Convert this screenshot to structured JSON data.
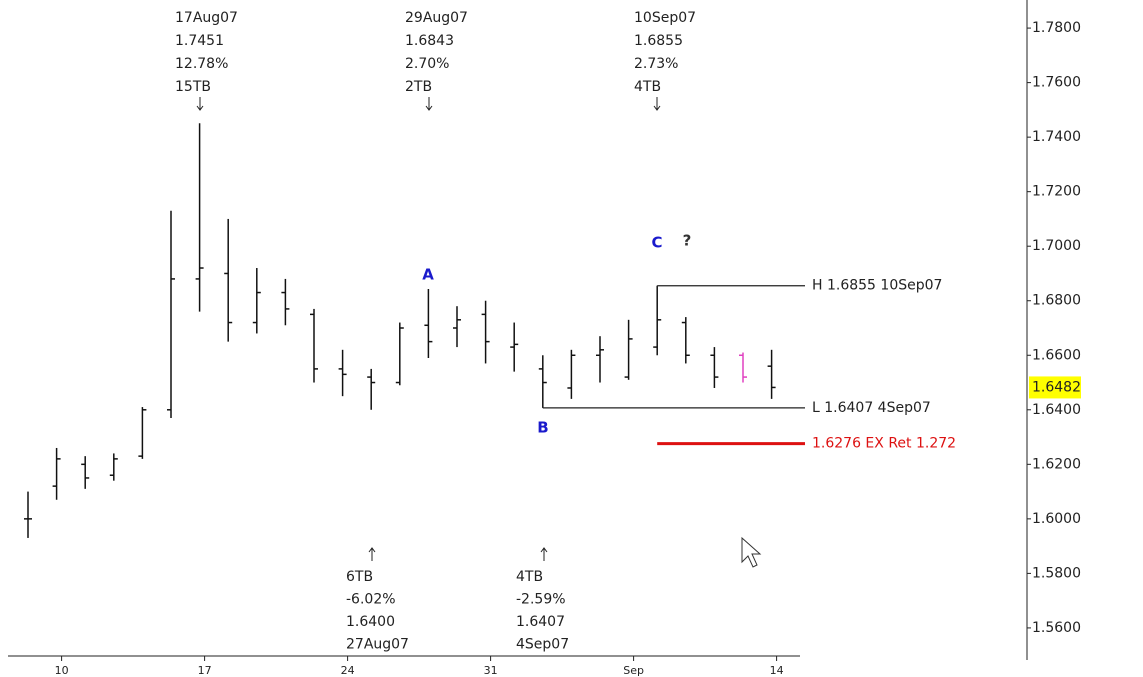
{
  "chart_data": {
    "type": "ohlc",
    "categories": [
      null,
      "10",
      null,
      null,
      null,
      null,
      "17",
      null,
      null,
      null,
      null,
      "24",
      null,
      null,
      null,
      null,
      "31",
      null,
      null,
      null,
      null,
      "Sep",
      null,
      null,
      null,
      null,
      "14"
    ],
    "series": [
      {
        "color": "#111111",
        "open": [
          1.6,
          1.612,
          1.62,
          1.616,
          1.623,
          1.64,
          1.688,
          1.69,
          1.672,
          1.683,
          1.675,
          1.655,
          1.652,
          1.65,
          1.671,
          1.67,
          1.675,
          1.663,
          1.655,
          1.648,
          1.66,
          1.652,
          1.663,
          1.672,
          1.66,
          1.66,
          1.656
        ],
        "high": [
          1.61,
          1.626,
          1.623,
          1.624,
          1.641,
          1.713,
          1.7451,
          1.71,
          1.692,
          1.688,
          1.677,
          1.662,
          1.655,
          1.672,
          1.6843,
          1.678,
          1.68,
          1.672,
          1.66,
          1.662,
          1.667,
          1.673,
          1.6855,
          1.674,
          1.663,
          1.661,
          1.662
        ],
        "low": [
          1.593,
          1.607,
          1.611,
          1.614,
          1.622,
          1.637,
          1.676,
          1.665,
          1.668,
          1.671,
          1.65,
          1.645,
          1.64,
          1.649,
          1.659,
          1.663,
          1.657,
          1.654,
          1.6407,
          1.644,
          1.65,
          1.651,
          1.66,
          1.657,
          1.648,
          1.65,
          1.644
        ],
        "close": [
          1.6,
          1.622,
          1.615,
          1.622,
          1.64,
          1.688,
          1.692,
          1.672,
          1.683,
          1.677,
          1.655,
          1.653,
          1.65,
          1.67,
          1.665,
          1.673,
          1.665,
          1.664,
          1.65,
          1.66,
          1.662,
          1.666,
          1.673,
          1.66,
          1.652,
          1.652,
          1.6482
        ]
      }
    ],
    "bar_colors": [
      "#111111",
      "#111111",
      "#111111",
      "#111111",
      "#111111",
      "#111111",
      "#111111",
      "#111111",
      "#111111",
      "#111111",
      "#111111",
      "#111111",
      "#111111",
      "#111111",
      "#111111",
      "#111111",
      "#111111",
      "#111111",
      "#111111",
      "#111111",
      "#111111",
      "#111111",
      "#111111",
      "#111111",
      "#111111",
      "#e040c0",
      "#111111"
    ],
    "ylim": [
      1.5497,
      1.7903
    ],
    "yticks": [
      {
        "value": 1.78,
        "label": "1.7800"
      },
      {
        "value": 1.76,
        "label": "1.7600"
      },
      {
        "value": 1.74,
        "label": "1.7400"
      },
      {
        "value": 1.72,
        "label": "1.7200"
      },
      {
        "value": 1.7,
        "label": "1.7000"
      },
      {
        "value": 1.68,
        "label": "1.6800"
      },
      {
        "value": 1.66,
        "label": "1.6600"
      },
      {
        "value": 1.64,
        "label": "1.6400"
      },
      {
        "value": 1.62,
        "label": "1.6200"
      },
      {
        "value": 1.6,
        "label": "1.6000"
      },
      {
        "value": 1.58,
        "label": "1.5800"
      },
      {
        "value": 1.56,
        "label": "1.5600"
      }
    ],
    "current_price": {
      "value": 1.6482,
      "label": "1.6482",
      "color": "#ffff00"
    },
    "levels": [
      {
        "value": 1.6855,
        "label": "H 1.6855 10Sep07",
        "color": "#222222"
      },
      {
        "value": 1.6407,
        "label": "L 1.6407 4Sep07",
        "color": "#222222"
      },
      {
        "value": 1.6276,
        "label": "1.6276 EX Ret 1.272",
        "color": "#dd1111"
      }
    ],
    "top_annotations": [
      [
        "17Aug07",
        "1.7451",
        "12.78%",
        "15TB"
      ],
      [
        "29Aug07",
        "1.6843",
        "2.70%",
        "2TB"
      ],
      [
        "10Sep07",
        "1.6855",
        "2.73%",
        "4TB"
      ]
    ],
    "bottom_annotations": [
      [
        "6TB",
        "-6.02%",
        "1.6400",
        "27Aug07"
      ],
      [
        "4TB",
        "-2.59%",
        "1.6407",
        "4Sep07"
      ]
    ],
    "wave_labels": [
      "A",
      "B",
      "C",
      "?"
    ]
  }
}
